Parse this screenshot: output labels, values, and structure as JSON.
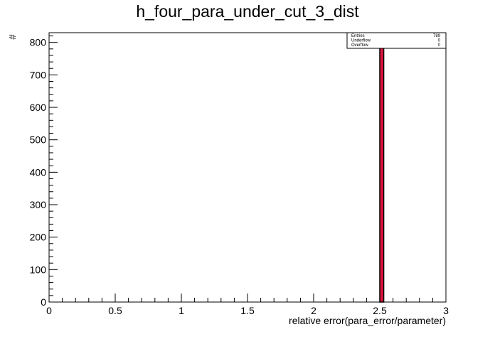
{
  "chart_data": {
    "type": "bar",
    "title": "h_four_para_under_cut_3_dist",
    "xlabel": "relative error(para_error/parameter)",
    "ylabel": "#",
    "xlim": [
      0,
      3
    ],
    "ylim": [
      0,
      830
    ],
    "x_ticks": [
      0,
      0.5,
      1,
      1.5,
      2,
      2.5,
      3
    ],
    "x_tick_labels": [
      "0",
      "0.5",
      "1",
      "1.5",
      "2",
      "2.5",
      "3"
    ],
    "y_ticks": [
      0,
      100,
      200,
      300,
      400,
      500,
      600,
      700,
      800
    ],
    "y_tick_labels": [
      "0",
      "100",
      "200",
      "300",
      "400",
      "500",
      "600",
      "700",
      "800"
    ],
    "bins": [
      {
        "x_low": 2.5,
        "x_high": 2.53,
        "value": 789
      }
    ],
    "bar_fill": "#dc143c",
    "bar_stroke": "#000000",
    "grid": false,
    "legend": "top-right",
    "stats": [
      {
        "label": "Entries",
        "value": "789"
      },
      {
        "label": "Underflow",
        "value": "0"
      },
      {
        "label": "Overflow",
        "value": "0"
      }
    ]
  }
}
